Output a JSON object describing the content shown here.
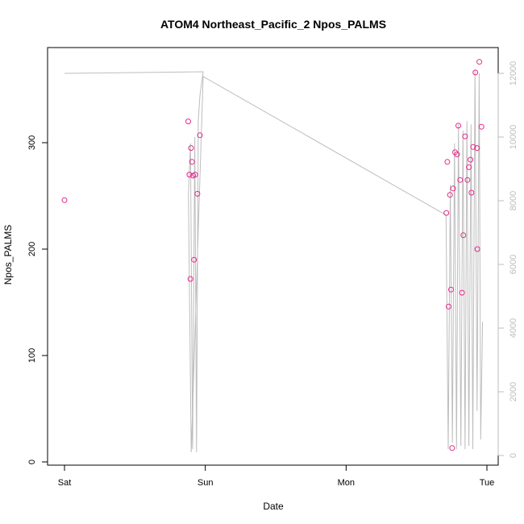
{
  "chart_data": {
    "type": "scatter",
    "title": "ATOM4 Northeast_Pacific_2 Npos_PALMS",
    "xlabel": "Date",
    "ylabel": "Npos_PALMS",
    "x_axis": {
      "type": "date",
      "range": [
        "Sat 00:00",
        "Tue 00:00"
      ],
      "ticks": [
        {
          "label": "Sat",
          "day": 0
        },
        {
          "label": "Sun",
          "day": 1
        },
        {
          "label": "Mon",
          "day": 2
        },
        {
          "label": "Tue",
          "day": 3
        }
      ]
    },
    "y_left": {
      "ylim": [
        0,
        380
      ],
      "ticks": [
        0,
        100,
        200,
        300
      ]
    },
    "y_right": {
      "ylim": [
        0,
        12400
      ],
      "ticks": [
        0,
        2000,
        4000,
        6000,
        8000,
        10000,
        12000
      ]
    },
    "colors": {
      "points": "#e7298a",
      "line": "#bdbdbd",
      "right_axis": "#bdbdbd",
      "frame": "#000000"
    },
    "series": [
      {
        "role": "points",
        "axis": "left",
        "points": [
          {
            "day": 0.0,
            "y": 246
          },
          {
            "day": 0.879,
            "y": 320
          },
          {
            "day": 0.887,
            "y": 270
          },
          {
            "day": 0.894,
            "y": 172
          },
          {
            "day": 0.899,
            "y": 295
          },
          {
            "day": 0.906,
            "y": 282
          },
          {
            "day": 0.913,
            "y": 269
          },
          {
            "day": 0.92,
            "y": 190
          },
          {
            "day": 0.928,
            "y": 270
          },
          {
            "day": 0.944,
            "y": 252
          },
          {
            "day": 0.962,
            "y": 307
          },
          {
            "day": 2.712,
            "y": 234
          },
          {
            "day": 2.719,
            "y": 282
          },
          {
            "day": 2.728,
            "y": 146
          },
          {
            "day": 2.738,
            "y": 251
          },
          {
            "day": 2.745,
            "y": 162
          },
          {
            "day": 2.753,
            "y": 13
          },
          {
            "day": 2.76,
            "y": 257
          },
          {
            "day": 2.774,
            "y": 291
          },
          {
            "day": 2.788,
            "y": 289
          },
          {
            "day": 2.797,
            "y": 316
          },
          {
            "day": 2.81,
            "y": 265
          },
          {
            "day": 2.823,
            "y": 159
          },
          {
            "day": 2.833,
            "y": 213
          },
          {
            "day": 2.845,
            "y": 306
          },
          {
            "day": 2.862,
            "y": 265
          },
          {
            "day": 2.872,
            "y": 277
          },
          {
            "day": 2.883,
            "y": 284
          },
          {
            "day": 2.89,
            "y": 253
          },
          {
            "day": 2.902,
            "y": 296
          },
          {
            "day": 2.918,
            "y": 366
          },
          {
            "day": 2.93,
            "y": 295
          },
          {
            "day": 2.932,
            "y": 200
          },
          {
            "day": 2.946,
            "y": 376
          },
          {
            "day": 2.961,
            "y": 315
          }
        ]
      },
      {
        "role": "line",
        "axis": "right",
        "points": [
          {
            "day": 0.0,
            "y": 12000
          },
          {
            "day": 0.985,
            "y": 12050
          },
          {
            "day": 0.962,
            "y": 11300
          },
          {
            "day": 0.95,
            "y": 10500
          },
          {
            "day": 0.938,
            "y": 100
          },
          {
            "day": 0.925,
            "y": 10000
          },
          {
            "day": 0.91,
            "y": 200
          },
          {
            "day": 0.895,
            "y": 9800
          },
          {
            "day": 0.88,
            "y": 8200
          },
          {
            "day": 0.9,
            "y": 100
          },
          {
            "day": 0.985,
            "y": 11900
          },
          {
            "day": 2.71,
            "y": 7550
          },
          {
            "day": 2.725,
            "y": 200
          },
          {
            "day": 2.74,
            "y": 8500
          },
          {
            "day": 2.755,
            "y": 400
          },
          {
            "day": 2.77,
            "y": 9800
          },
          {
            "day": 2.784,
            "y": 200
          },
          {
            "day": 2.798,
            "y": 10400
          },
          {
            "day": 2.815,
            "y": 300
          },
          {
            "day": 2.83,
            "y": 10200
          },
          {
            "day": 2.845,
            "y": 200
          },
          {
            "day": 2.858,
            "y": 10500
          },
          {
            "day": 2.872,
            "y": 300
          },
          {
            "day": 2.887,
            "y": 10400
          },
          {
            "day": 2.9,
            "y": 200
          },
          {
            "day": 2.915,
            "y": 12100
          },
          {
            "day": 2.93,
            "y": 1400
          },
          {
            "day": 2.945,
            "y": 12000
          },
          {
            "day": 2.956,
            "y": 500
          },
          {
            "day": 2.969,
            "y": 4200
          }
        ]
      }
    ],
    "grid": false,
    "legend": "none"
  }
}
